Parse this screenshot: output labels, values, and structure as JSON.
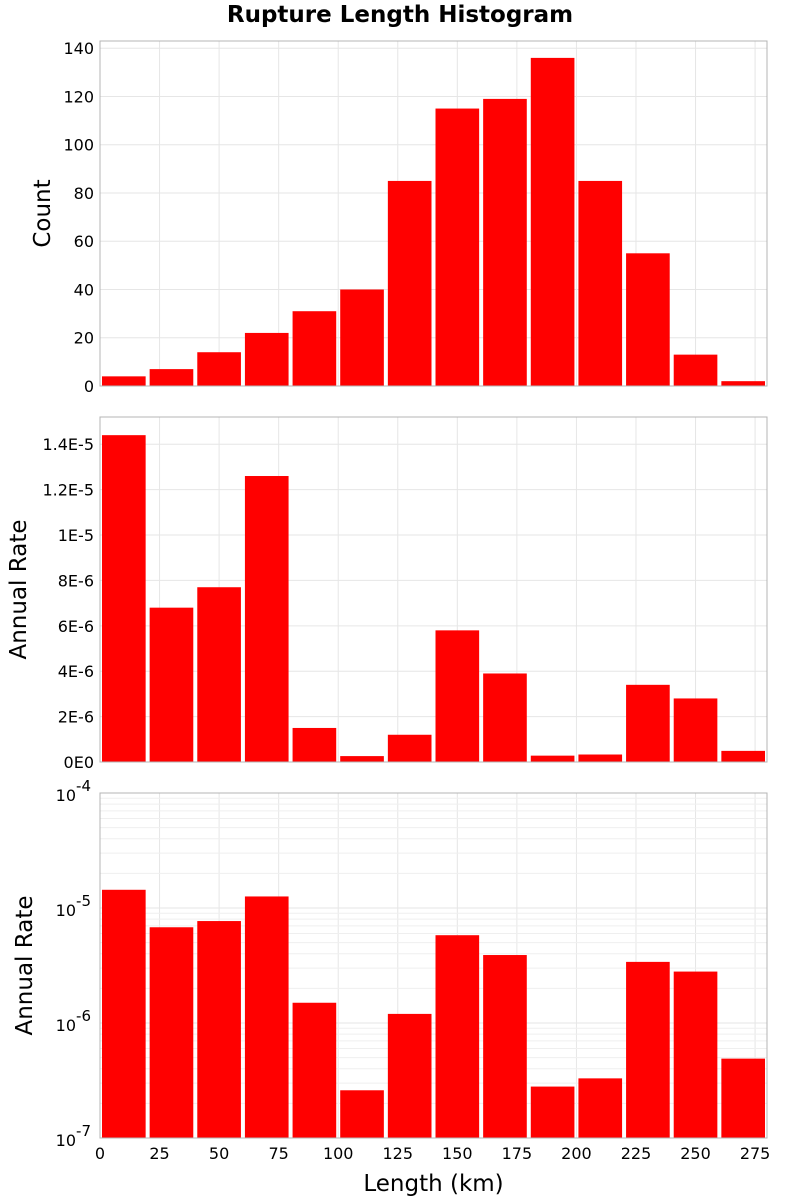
{
  "title": "Rupture Length Histogram",
  "colors": {
    "bar": "#ff0000",
    "grid": "#e6e6e6",
    "frame": "#b4b4b4"
  },
  "chart_data": [
    {
      "type": "bar",
      "bin_starts": [
        0,
        20,
        40,
        60,
        80,
        100,
        120,
        140,
        160,
        180,
        200,
        220,
        240,
        260
      ],
      "bin_width": 20,
      "values": [
        4,
        7,
        14,
        22,
        31,
        40,
        85,
        115,
        119,
        136,
        85,
        55,
        13,
        2
      ],
      "ylabel": "Count",
      "ylim": [
        0,
        143
      ],
      "xlim": [
        0,
        280
      ],
      "yticks": [
        0,
        20,
        40,
        60,
        80,
        100,
        120,
        140
      ],
      "ytick_labels": [
        "0",
        "20",
        "40",
        "60",
        "80",
        "100",
        "120",
        "140"
      ],
      "grid": true,
      "scale": "linear"
    },
    {
      "type": "bar",
      "bin_starts": [
        0,
        20,
        40,
        60,
        80,
        100,
        120,
        140,
        160,
        180,
        200,
        220,
        240,
        260
      ],
      "bin_width": 20,
      "values": [
        1.44e-05,
        6.8e-06,
        7.7e-06,
        1.26e-05,
        1.5e-06,
        2.6e-07,
        1.2e-06,
        5.8e-06,
        3.9e-06,
        2.8e-07,
        3.3e-07,
        3.4e-06,
        2.8e-06,
        4.9e-07
      ],
      "ylabel": "Annual Rate",
      "ylim": [
        0,
        1.52e-05
      ],
      "xlim": [
        0,
        280
      ],
      "yticks": [
        0,
        2e-06,
        4e-06,
        6e-06,
        8e-06,
        1e-05,
        1.2e-05,
        1.4e-05
      ],
      "ytick_labels": [
        "0E0",
        "2E-6",
        "4E-6",
        "6E-6",
        "8E-6",
        "1E-5",
        "1.2E-5",
        "1.4E-5"
      ],
      "grid": true,
      "scale": "linear"
    },
    {
      "type": "bar",
      "bin_starts": [
        0,
        20,
        40,
        60,
        80,
        100,
        120,
        140,
        160,
        180,
        200,
        220,
        240,
        260
      ],
      "bin_width": 20,
      "values": [
        1.44e-05,
        6.8e-06,
        7.7e-06,
        1.26e-05,
        1.5e-06,
        2.6e-07,
        1.2e-06,
        5.8e-06,
        3.9e-06,
        2.8e-07,
        3.3e-07,
        3.4e-06,
        2.8e-06,
        4.9e-07
      ],
      "ylabel": "Annual Rate",
      "ylim": [
        1e-07,
        0.0001
      ],
      "xlim": [
        0,
        280
      ],
      "yticks_exp": [
        -7,
        -6,
        -5,
        -4
      ],
      "ytick_base": "10",
      "grid": true,
      "scale": "log",
      "xlabel": "Length (km)",
      "xticks": [
        0,
        25,
        50,
        75,
        100,
        125,
        150,
        175,
        200,
        225,
        250,
        275
      ],
      "xtick_labels": [
        "0",
        "25",
        "50",
        "75",
        "100",
        "125",
        "150",
        "175",
        "200",
        "225",
        "250",
        "275"
      ]
    }
  ]
}
